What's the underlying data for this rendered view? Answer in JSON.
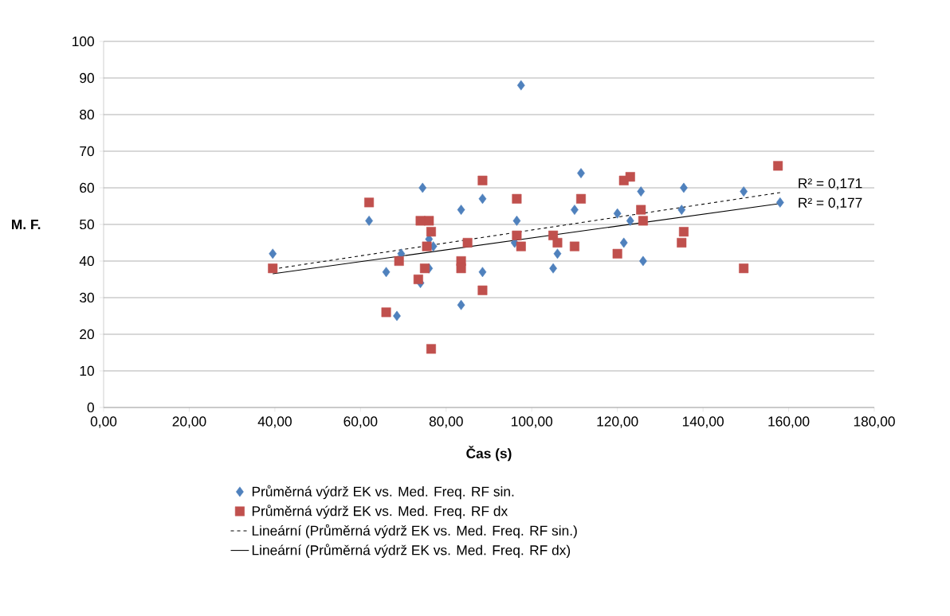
{
  "chart_data": {
    "type": "scatter",
    "xlabel": "Čas (s)",
    "ylabel": "M. F.",
    "xlim": [
      0,
      180
    ],
    "ylim": [
      0,
      100
    ],
    "xticks": [
      {
        "value": 0,
        "label": "0,00"
      },
      {
        "value": 20,
        "label": "20,00"
      },
      {
        "value": 40,
        "label": "40,00"
      },
      {
        "value": 60,
        "label": "60,00"
      },
      {
        "value": 80,
        "label": "80,00"
      },
      {
        "value": 100,
        "label": "100,00"
      },
      {
        "value": 120,
        "label": "120,00"
      },
      {
        "value": 140,
        "label": "140,00"
      },
      {
        "value": 160,
        "label": "160,00"
      },
      {
        "value": 180,
        "label": "180,00"
      }
    ],
    "yticks": [
      0,
      10,
      20,
      30,
      40,
      50,
      60,
      70,
      80,
      90,
      100
    ],
    "grid": "y",
    "legend": "bottom",
    "series": [
      {
        "name": "Průměrná výdrž EK vs. Med. Freq. RF sin.",
        "marker": "diamond",
        "color": "#4f81bd",
        "x": [
          39.5,
          62,
          66,
          68.5,
          69.5,
          74.5,
          74,
          76,
          77,
          76,
          83.5,
          83.5,
          88.5,
          88.5,
          96.5,
          96,
          97.5,
          105,
          106,
          110,
          111.5,
          120,
          121.5,
          123,
          125.5,
          126,
          135,
          135.5,
          149.5,
          158
        ],
        "values": [
          42,
          51,
          37,
          25,
          42,
          60,
          34,
          46,
          44,
          38,
          54,
          28,
          57,
          37,
          51,
          45,
          88,
          38,
          42,
          54,
          64,
          53,
          45,
          51,
          59,
          40,
          54,
          60,
          59,
          56
        ]
      },
      {
        "name": "Průměrná výdrž EK vs. Med. Freq. RF dx",
        "marker": "square",
        "color": "#c0504d",
        "x": [
          39.5,
          62,
          66,
          69,
          74,
          76,
          76.5,
          75.5,
          75,
          73.5,
          76.5,
          85,
          83.5,
          83.5,
          88.5,
          88.5,
          96.5,
          96.5,
          97.5,
          105,
          106,
          110,
          111.5,
          120,
          121.5,
          123,
          125.5,
          126,
          135,
          135.5,
          149.5,
          157.5
        ],
        "values": [
          38,
          56,
          26,
          40,
          51,
          51,
          48,
          44,
          38,
          35,
          16,
          45,
          40,
          38,
          32,
          62,
          57,
          47,
          44,
          47,
          45,
          44,
          57,
          42,
          62,
          63,
          54,
          51,
          45,
          48,
          38,
          66
        ]
      },
      {
        "name": "Lineární (Průměrná výdrž EK vs. Med. Freq. RF sin.)",
        "type": "line",
        "marker": "none",
        "line_style": "dashed",
        "color": "#000000",
        "x": [
          39.5,
          158
        ],
        "values": [
          37.8,
          58.7
        ]
      },
      {
        "name": "Lineární (Průměrná výdrž EK vs. Med. Freq. RF dx)",
        "type": "line",
        "marker": "none",
        "line_style": "solid",
        "color": "#000000",
        "x": [
          39.5,
          158
        ],
        "values": [
          36.5,
          55.7
        ]
      }
    ],
    "annotations": [
      {
        "text": "R² = 0,171",
        "x": 158,
        "y": 58.7
      },
      {
        "text": "R² = 0,177",
        "x": 158,
        "y": 55.7
      }
    ]
  }
}
